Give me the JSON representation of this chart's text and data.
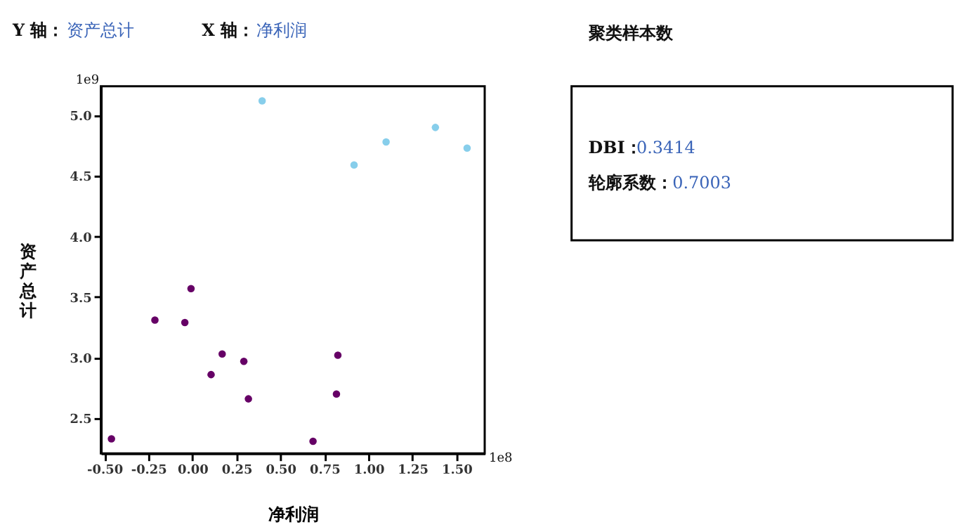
{
  "chart_data": [
    {
      "type": "scatter",
      "xlabel": "净利润",
      "ylabel": "资产总计",
      "annotations": [
        "Y 轴：资产总计",
        "X 轴：净利润",
        "1e9",
        "1e8"
      ],
      "series": [
        {
          "color": "#87ceeb",
          "x": [
            0.396,
            0.918,
            1.1,
            1.38,
            1.56
          ],
          "values": [
            5.12,
            4.59,
            4.78,
            4.9,
            4.73
          ]
        },
        {
          "color": "#660066",
          "x": [
            -0.008,
            -0.213,
            -0.043,
            0.169,
            0.292,
            0.106,
            0.318,
            0.826,
            0.818,
            -0.46,
            0.685
          ],
          "values": [
            3.57,
            3.31,
            3.29,
            3.03,
            2.97,
            2.86,
            2.66,
            3.02,
            2.7,
            2.33,
            2.31
          ]
        }
      ],
      "xlim": [
        -0.52,
        1.66
      ],
      "ylim": [
        2.21,
        5.24
      ],
      "xticks": [
        {
          "value": -0.5,
          "label": "-0.50"
        },
        -0.25,
        {
          "value": 0,
          "label": "0.00"
        },
        0.25,
        {
          "value": 0.5,
          "label": "0.50"
        },
        0.75,
        {
          "value": 1,
          "label": "1.00"
        },
        1.25,
        {
          "value": 1.5,
          "label": "1.50"
        }
      ],
      "yticks": [
        2.5,
        {
          "value": 3,
          "label": "3.0"
        },
        3.5,
        {
          "value": 4,
          "label": "4.0"
        },
        4.5,
        {
          "value": 5,
          "label": "5.0"
        }
      ],
      "grid": false,
      "legend": false,
      "marker": "circle"
    },
    {
      "type": "other",
      "title": "聚类样本数",
      "annotations": [
        "DBI：0.3414",
        "轮廓系数：0.7003"
      ]
    }
  ]
}
